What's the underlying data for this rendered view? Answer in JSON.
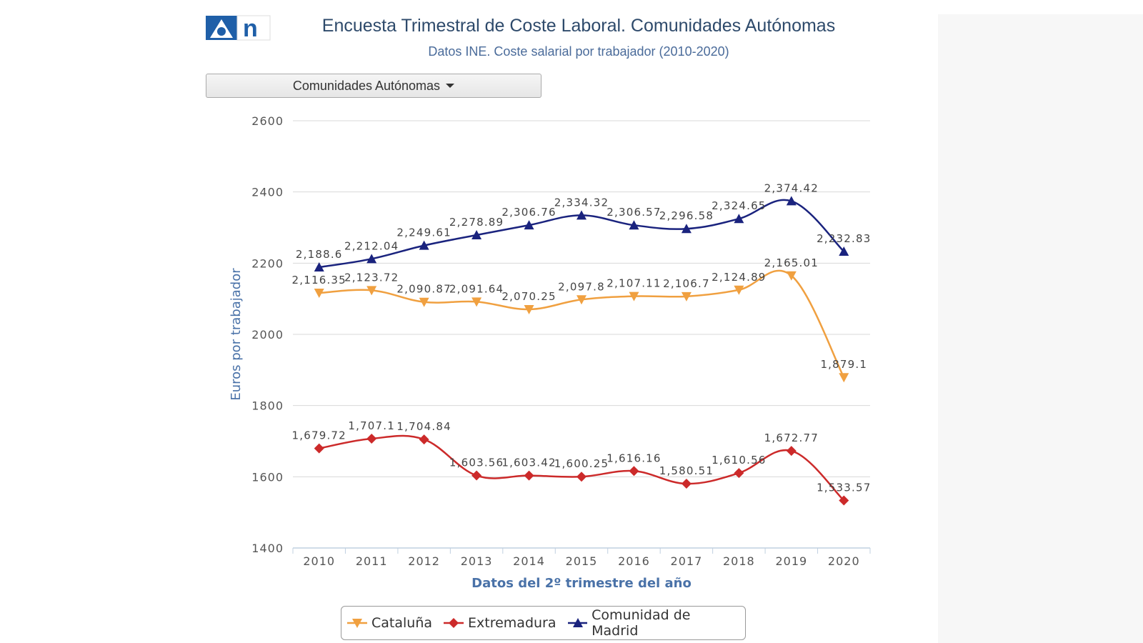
{
  "header": {
    "title": "Encuesta Trimestral de Coste Laboral. Comunidades Autónomas",
    "subtitle": "Datos INE. Coste salarial por trabajador (2010-2020)"
  },
  "logo": {
    "letter": "n",
    "icon": "antena3-logo-icon"
  },
  "dropdown": {
    "label": "Comunidades Autónomas"
  },
  "chart_data": {
    "type": "line",
    "xlabel": "Datos del 2º trimestre del año",
    "ylabel": "Euros por trabajador",
    "ylim": [
      1400,
      2600
    ],
    "yticks": [
      1400,
      1600,
      1800,
      2000,
      2200,
      2400,
      2600
    ],
    "categories": [
      "2010",
      "2011",
      "2012",
      "2013",
      "2014",
      "2015",
      "2016",
      "2017",
      "2018",
      "2019",
      "2020"
    ],
    "grid": true,
    "legend": "bottom",
    "series": [
      {
        "name": "Cataluña",
        "color": "#f0a040",
        "marker": "triangle-down",
        "values": [
          2116.35,
          2123.72,
          2090.87,
          2091.64,
          2070.25,
          2097.8,
          2107.11,
          2106.7,
          2124.89,
          2165.01,
          1879.1
        ],
        "labels": [
          "2,116.35",
          "2,123.72",
          "2,090.87",
          "2,091.64",
          "2,070.25",
          "2,097.8",
          "2,107.11",
          "2,106.7",
          "2,124.89",
          "2,165.01",
          "1,879.1"
        ]
      },
      {
        "name": "Extremadura",
        "color": "#cc2a2a",
        "marker": "diamond",
        "values": [
          1679.72,
          1707.1,
          1704.84,
          1603.56,
          1603.42,
          1600.25,
          1616.16,
          1580.51,
          1610.56,
          1672.77,
          1533.57
        ],
        "labels": [
          "1,679.72",
          "1,707.1",
          "1,704.84",
          "1,603.56",
          "1,603.42",
          "1,600.25",
          "1,616.16",
          "1,580.51",
          "1,610.56",
          "1,672.77",
          "1,533.57"
        ]
      },
      {
        "name": "Comunidad de Madrid",
        "color": "#1a237e",
        "marker": "triangle-up",
        "values": [
          2188.6,
          2212.04,
          2249.61,
          2278.89,
          2306.76,
          2334.32,
          2306.57,
          2296.58,
          2324.65,
          2374.42,
          2232.83
        ],
        "labels": [
          "2,188.6",
          "2,212.04",
          "2,249.61",
          "2,278.89",
          "2,306.76",
          "2,334.32",
          "2,306.57",
          "2,296.58",
          "2,324.65",
          "2,374.42",
          "2,232.83"
        ]
      }
    ]
  }
}
